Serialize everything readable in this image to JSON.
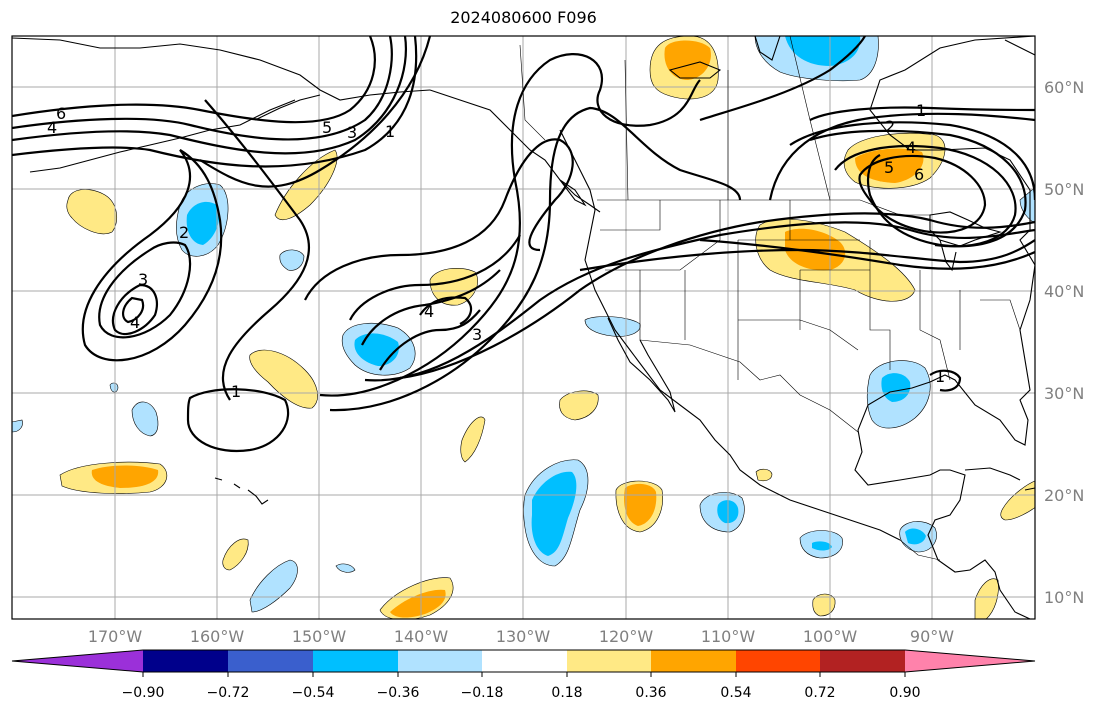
{
  "title": "2024080600 F096",
  "map": {
    "lon_labels": [
      "170°W",
      "160°W",
      "150°W",
      "140°W",
      "130°W",
      "120°W",
      "110°W",
      "100°W",
      "90°W"
    ],
    "lat_labels": [
      "60°N",
      "50°N",
      "40°N",
      "30°N",
      "20°N",
      "10°N"
    ],
    "contour_labels": [
      "6",
      "4",
      "5",
      "3",
      "1",
      "2",
      "3",
      "4",
      "1",
      "4",
      "3",
      "1",
      "2",
      "4",
      "5",
      "6",
      "1"
    ]
  },
  "colorbar": {
    "ticks": [
      "−0.90",
      "−0.72",
      "−0.54",
      "−0.36",
      "−0.18",
      "0.18",
      "0.36",
      "0.54",
      "0.72",
      "0.90"
    ],
    "colors": {
      "below": "#9b30d9",
      "n090": "#00008b",
      "n072": "#3a5fcd",
      "n054": "#00bfff",
      "n036": "#b0e2ff",
      "zero": "#ffffff",
      "p018": "#ffe985",
      "p036": "#ffa500",
      "p054": "#ff4500",
      "p072": "#b22222",
      "above": "#ff82ab"
    }
  }
}
